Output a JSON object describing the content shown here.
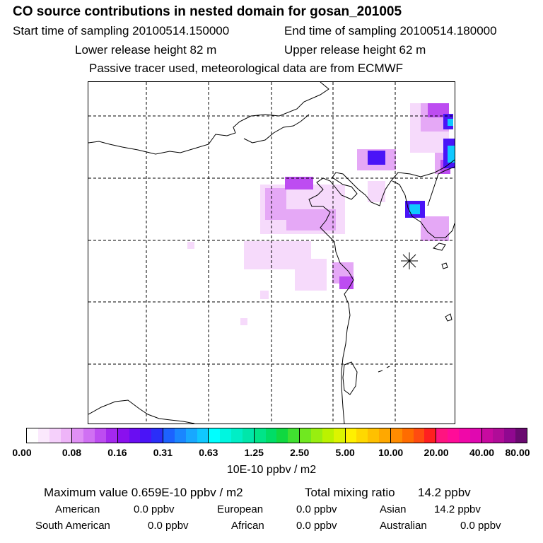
{
  "header": {
    "title": "CO  source contributions in nested domain for gosan_201005",
    "start_label": "Start time of sampling 20100514.150000",
    "end_label": "End time of sampling 20100514.180000",
    "lower_label": "Lower release height   82 m",
    "upper_label": "Upper release height   62 m",
    "note": "Passive tracer used, meteorological data are from ECMWF"
  },
  "colorbar": {
    "ticks": [
      "0.00",
      "0.08",
      "0.16",
      "0.31",
      "0.63",
      "1.25",
      "2.50",
      "5.00",
      "10.00",
      "20.00",
      "40.00",
      "80.00"
    ],
    "units": "10E-10 ppbv / m2",
    "colors": [
      [
        "#ffffff",
        "#fbe9fd",
        "#f5d0fb",
        "#eeb4f8"
      ],
      [
        "#e090f5",
        "#d070f3",
        "#bd4cf1",
        "#a428ee"
      ],
      [
        "#8a10ee",
        "#6a0df2",
        "#4a14f7",
        "#2a2ef9"
      ],
      [
        "#1c62ff",
        "#1a86ff",
        "#18a8ff",
        "#10c8ff"
      ],
      [
        "#00ffff",
        "#00f6e0",
        "#00eec6",
        "#00e6aa"
      ],
      [
        "#00e488",
        "#00dd66",
        "#10d840",
        "#40e030"
      ],
      [
        "#70e820",
        "#98ee10",
        "#bbf200",
        "#dcf400"
      ],
      [
        "#fff000",
        "#ffd800",
        "#ffc000",
        "#ffa800"
      ],
      [
        "#ff8c00",
        "#ff6c00",
        "#ff4c10",
        "#ff2020"
      ],
      [
        "#ff1480",
        "#ff0c98",
        "#f008a8",
        "#e008b0"
      ],
      [
        "#c80aa0",
        "#b00c98",
        "#900890",
        "#6a0a70"
      ]
    ]
  },
  "stats": {
    "max_label": "Maximum value  0.659E-10 ppbv / m2",
    "total_label": "Total mixing ratio",
    "total_value": "14.2 ppbv",
    "regions": [
      {
        "name": "American",
        "value": "0.0 ppbv"
      },
      {
        "name": "European",
        "value": "0.0 ppbv"
      },
      {
        "name": "Asian",
        "value": "14.2 ppbv"
      },
      {
        "name": "South American",
        "value": "0.0 ppbv"
      },
      {
        "name": "African",
        "value": "0.0 ppbv"
      },
      {
        "name": "Australian",
        "value": "0.0 ppbv"
      }
    ]
  }
}
